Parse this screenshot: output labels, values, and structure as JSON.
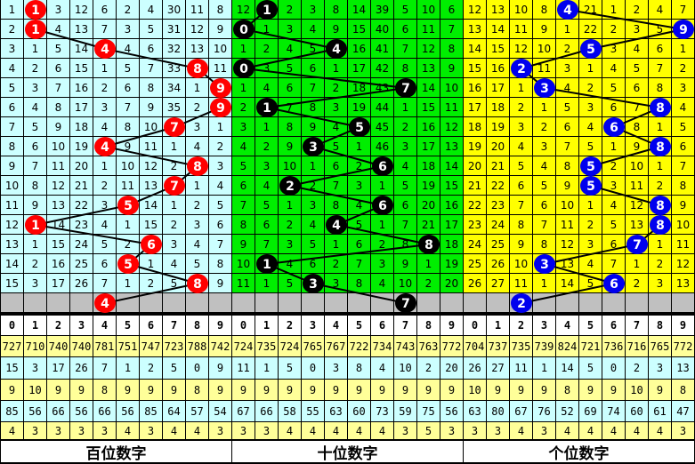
{
  "colors": {
    "stat_yellow": "#ffff99",
    "stat_cyan": "#ccffff",
    "gray_row": "#c0c0c0"
  },
  "digits": [
    "0",
    "1",
    "2",
    "3",
    "4",
    "5",
    "6",
    "7",
    "8",
    "9"
  ],
  "panels": [
    {
      "label": "百位数字",
      "bg": "#ccffff",
      "ball": "#ff0000",
      "ball_text": "#ffffff",
      "rows": [
        [
          1,
          null,
          3,
          12,
          6,
          2,
          4,
          30,
          11,
          8
        ],
        [
          2,
          null,
          4,
          13,
          7,
          3,
          5,
          31,
          12,
          9
        ],
        [
          3,
          1,
          5,
          14,
          null,
          4,
          6,
          32,
          13,
          10
        ],
        [
          4,
          2,
          6,
          15,
          1,
          5,
          7,
          33,
          null,
          11
        ],
        [
          5,
          3,
          7,
          16,
          2,
          6,
          8,
          34,
          1,
          null
        ],
        [
          6,
          4,
          8,
          17,
          3,
          7,
          9,
          35,
          2,
          null
        ],
        [
          7,
          5,
          9,
          18,
          4,
          8,
          10,
          null,
          3,
          1
        ],
        [
          8,
          6,
          10,
          19,
          null,
          9,
          11,
          1,
          4,
          2
        ],
        [
          9,
          7,
          11,
          20,
          1,
          10,
          12,
          2,
          null,
          3
        ],
        [
          10,
          8,
          12,
          21,
          2,
          11,
          13,
          null,
          1,
          4
        ],
        [
          11,
          9,
          13,
          22,
          3,
          null,
          14,
          1,
          2,
          5
        ],
        [
          12,
          null,
          14,
          23,
          4,
          1,
          15,
          2,
          3,
          6
        ],
        [
          13,
          1,
          15,
          24,
          5,
          2,
          null,
          3,
          4,
          7
        ],
        [
          14,
          2,
          16,
          25,
          6,
          null,
          1,
          4,
          5,
          8
        ],
        [
          15,
          3,
          17,
          26,
          7,
          1,
          2,
          5,
          null,
          9
        ]
      ],
      "hits": [
        1,
        1,
        4,
        8,
        9,
        9,
        7,
        4,
        8,
        7,
        5,
        1,
        6,
        5,
        8
      ],
      "next": 4,
      "stats": [
        [
          "727",
          "710",
          "740",
          "740",
          "781",
          "751",
          "747",
          "723",
          "788",
          "742"
        ],
        [
          "15",
          "3",
          "17",
          "26",
          "7",
          "1",
          "2",
          "5",
          "0",
          "9"
        ],
        [
          "9",
          "10",
          "9",
          "9",
          "8",
          "9",
          "9",
          "9",
          "8",
          "9"
        ],
        [
          "85",
          "56",
          "66",
          "56",
          "66",
          "56",
          "85",
          "64",
          "57",
          "54"
        ],
        [
          "4",
          "3",
          "3",
          "3",
          "3",
          "4",
          "3",
          "4",
          "4",
          "3"
        ]
      ]
    },
    {
      "label": "十位数字",
      "bg": "#00ee00",
      "ball": "#000000",
      "ball_text": "#ffffff",
      "rows": [
        [
          12,
          null,
          2,
          3,
          8,
          14,
          39,
          5,
          10,
          6
        ],
        [
          null,
          1,
          3,
          4,
          9,
          15,
          40,
          6,
          11,
          7
        ],
        [
          1,
          2,
          4,
          5,
          null,
          16,
          41,
          7,
          12,
          8
        ],
        [
          null,
          3,
          5,
          6,
          1,
          17,
          42,
          8,
          13,
          9
        ],
        [
          1,
          4,
          6,
          7,
          2,
          18,
          43,
          null,
          14,
          10
        ],
        [
          2,
          null,
          7,
          8,
          3,
          19,
          44,
          1,
          15,
          11
        ],
        [
          3,
          1,
          8,
          9,
          4,
          null,
          45,
          2,
          16,
          12
        ],
        [
          4,
          2,
          9,
          null,
          5,
          1,
          46,
          3,
          17,
          13
        ],
        [
          5,
          3,
          10,
          1,
          6,
          2,
          null,
          4,
          18,
          14
        ],
        [
          6,
          4,
          null,
          2,
          7,
          3,
          1,
          5,
          19,
          15
        ],
        [
          7,
          5,
          1,
          3,
          8,
          4,
          null,
          6,
          20,
          16
        ],
        [
          8,
          6,
          2,
          4,
          null,
          5,
          1,
          7,
          21,
          17
        ],
        [
          9,
          7,
          3,
          5,
          1,
          6,
          2,
          8,
          null,
          18
        ],
        [
          10,
          null,
          4,
          6,
          2,
          7,
          3,
          9,
          1,
          19
        ],
        [
          11,
          1,
          5,
          null,
          3,
          8,
          4,
          10,
          2,
          20
        ]
      ],
      "hits": [
        1,
        0,
        4,
        0,
        7,
        1,
        5,
        3,
        6,
        2,
        6,
        4,
        8,
        1,
        3
      ],
      "next": 7,
      "stats": [
        [
          "724",
          "735",
          "724",
          "765",
          "767",
          "722",
          "734",
          "743",
          "763",
          "772"
        ],
        [
          "11",
          "1",
          "5",
          "0",
          "3",
          "8",
          "4",
          "10",
          "2",
          "20"
        ],
        [
          "9",
          "9",
          "9",
          "9",
          "9",
          "9",
          "9",
          "9",
          "9",
          "9"
        ],
        [
          "67",
          "66",
          "58",
          "55",
          "63",
          "60",
          "73",
          "59",
          "75",
          "56"
        ],
        [
          "3",
          "3",
          "4",
          "4",
          "4",
          "4",
          "4",
          "3",
          "5",
          "3"
        ]
      ]
    },
    {
      "label": "个位数字",
      "bg": "#ffff00",
      "ball": "#0000ee",
      "ball_text": "#ffffff",
      "rows": [
        [
          12,
          13,
          10,
          8,
          null,
          21,
          1,
          2,
          4,
          7
        ],
        [
          13,
          14,
          11,
          9,
          1,
          22,
          2,
          3,
          5,
          null
        ],
        [
          14,
          15,
          12,
          10,
          2,
          null,
          3,
          4,
          6,
          1
        ],
        [
          15,
          16,
          null,
          11,
          3,
          1,
          4,
          5,
          7,
          2
        ],
        [
          16,
          17,
          1,
          null,
          4,
          2,
          5,
          6,
          8,
          3
        ],
        [
          17,
          18,
          2,
          1,
          5,
          3,
          6,
          7,
          null,
          4
        ],
        [
          18,
          19,
          3,
          2,
          6,
          4,
          null,
          8,
          1,
          5
        ],
        [
          19,
          20,
          4,
          3,
          7,
          5,
          1,
          9,
          null,
          6
        ],
        [
          20,
          21,
          5,
          4,
          8,
          null,
          2,
          10,
          1,
          7
        ],
        [
          21,
          22,
          6,
          5,
          9,
          null,
          3,
          11,
          2,
          8
        ],
        [
          22,
          23,
          7,
          6,
          10,
          1,
          4,
          12,
          null,
          9
        ],
        [
          23,
          24,
          8,
          7,
          11,
          2,
          5,
          13,
          null,
          10
        ],
        [
          24,
          25,
          9,
          8,
          12,
          3,
          6,
          null,
          1,
          11
        ],
        [
          25,
          26,
          10,
          null,
          13,
          4,
          7,
          1,
          2,
          12
        ],
        [
          26,
          27,
          11,
          1,
          14,
          5,
          null,
          2,
          3,
          13
        ]
      ],
      "hits": [
        4,
        9,
        5,
        2,
        3,
        8,
        6,
        8,
        5,
        5,
        8,
        8,
        7,
        3,
        6
      ],
      "next": 2,
      "stats": [
        [
          "704",
          "737",
          "735",
          "739",
          "824",
          "721",
          "736",
          "716",
          "765",
          "772"
        ],
        [
          "26",
          "27",
          "11",
          "1",
          "14",
          "5",
          "0",
          "2",
          "3",
          "13"
        ],
        [
          "10",
          "9",
          "9",
          "9",
          "8",
          "9",
          "9",
          "10",
          "9",
          "8"
        ],
        [
          "63",
          "80",
          "67",
          "76",
          "52",
          "69",
          "74",
          "60",
          "61",
          "47"
        ],
        [
          "3",
          "3",
          "4",
          "3",
          "4",
          "4",
          "4",
          "4",
          "4",
          "3"
        ]
      ]
    }
  ]
}
